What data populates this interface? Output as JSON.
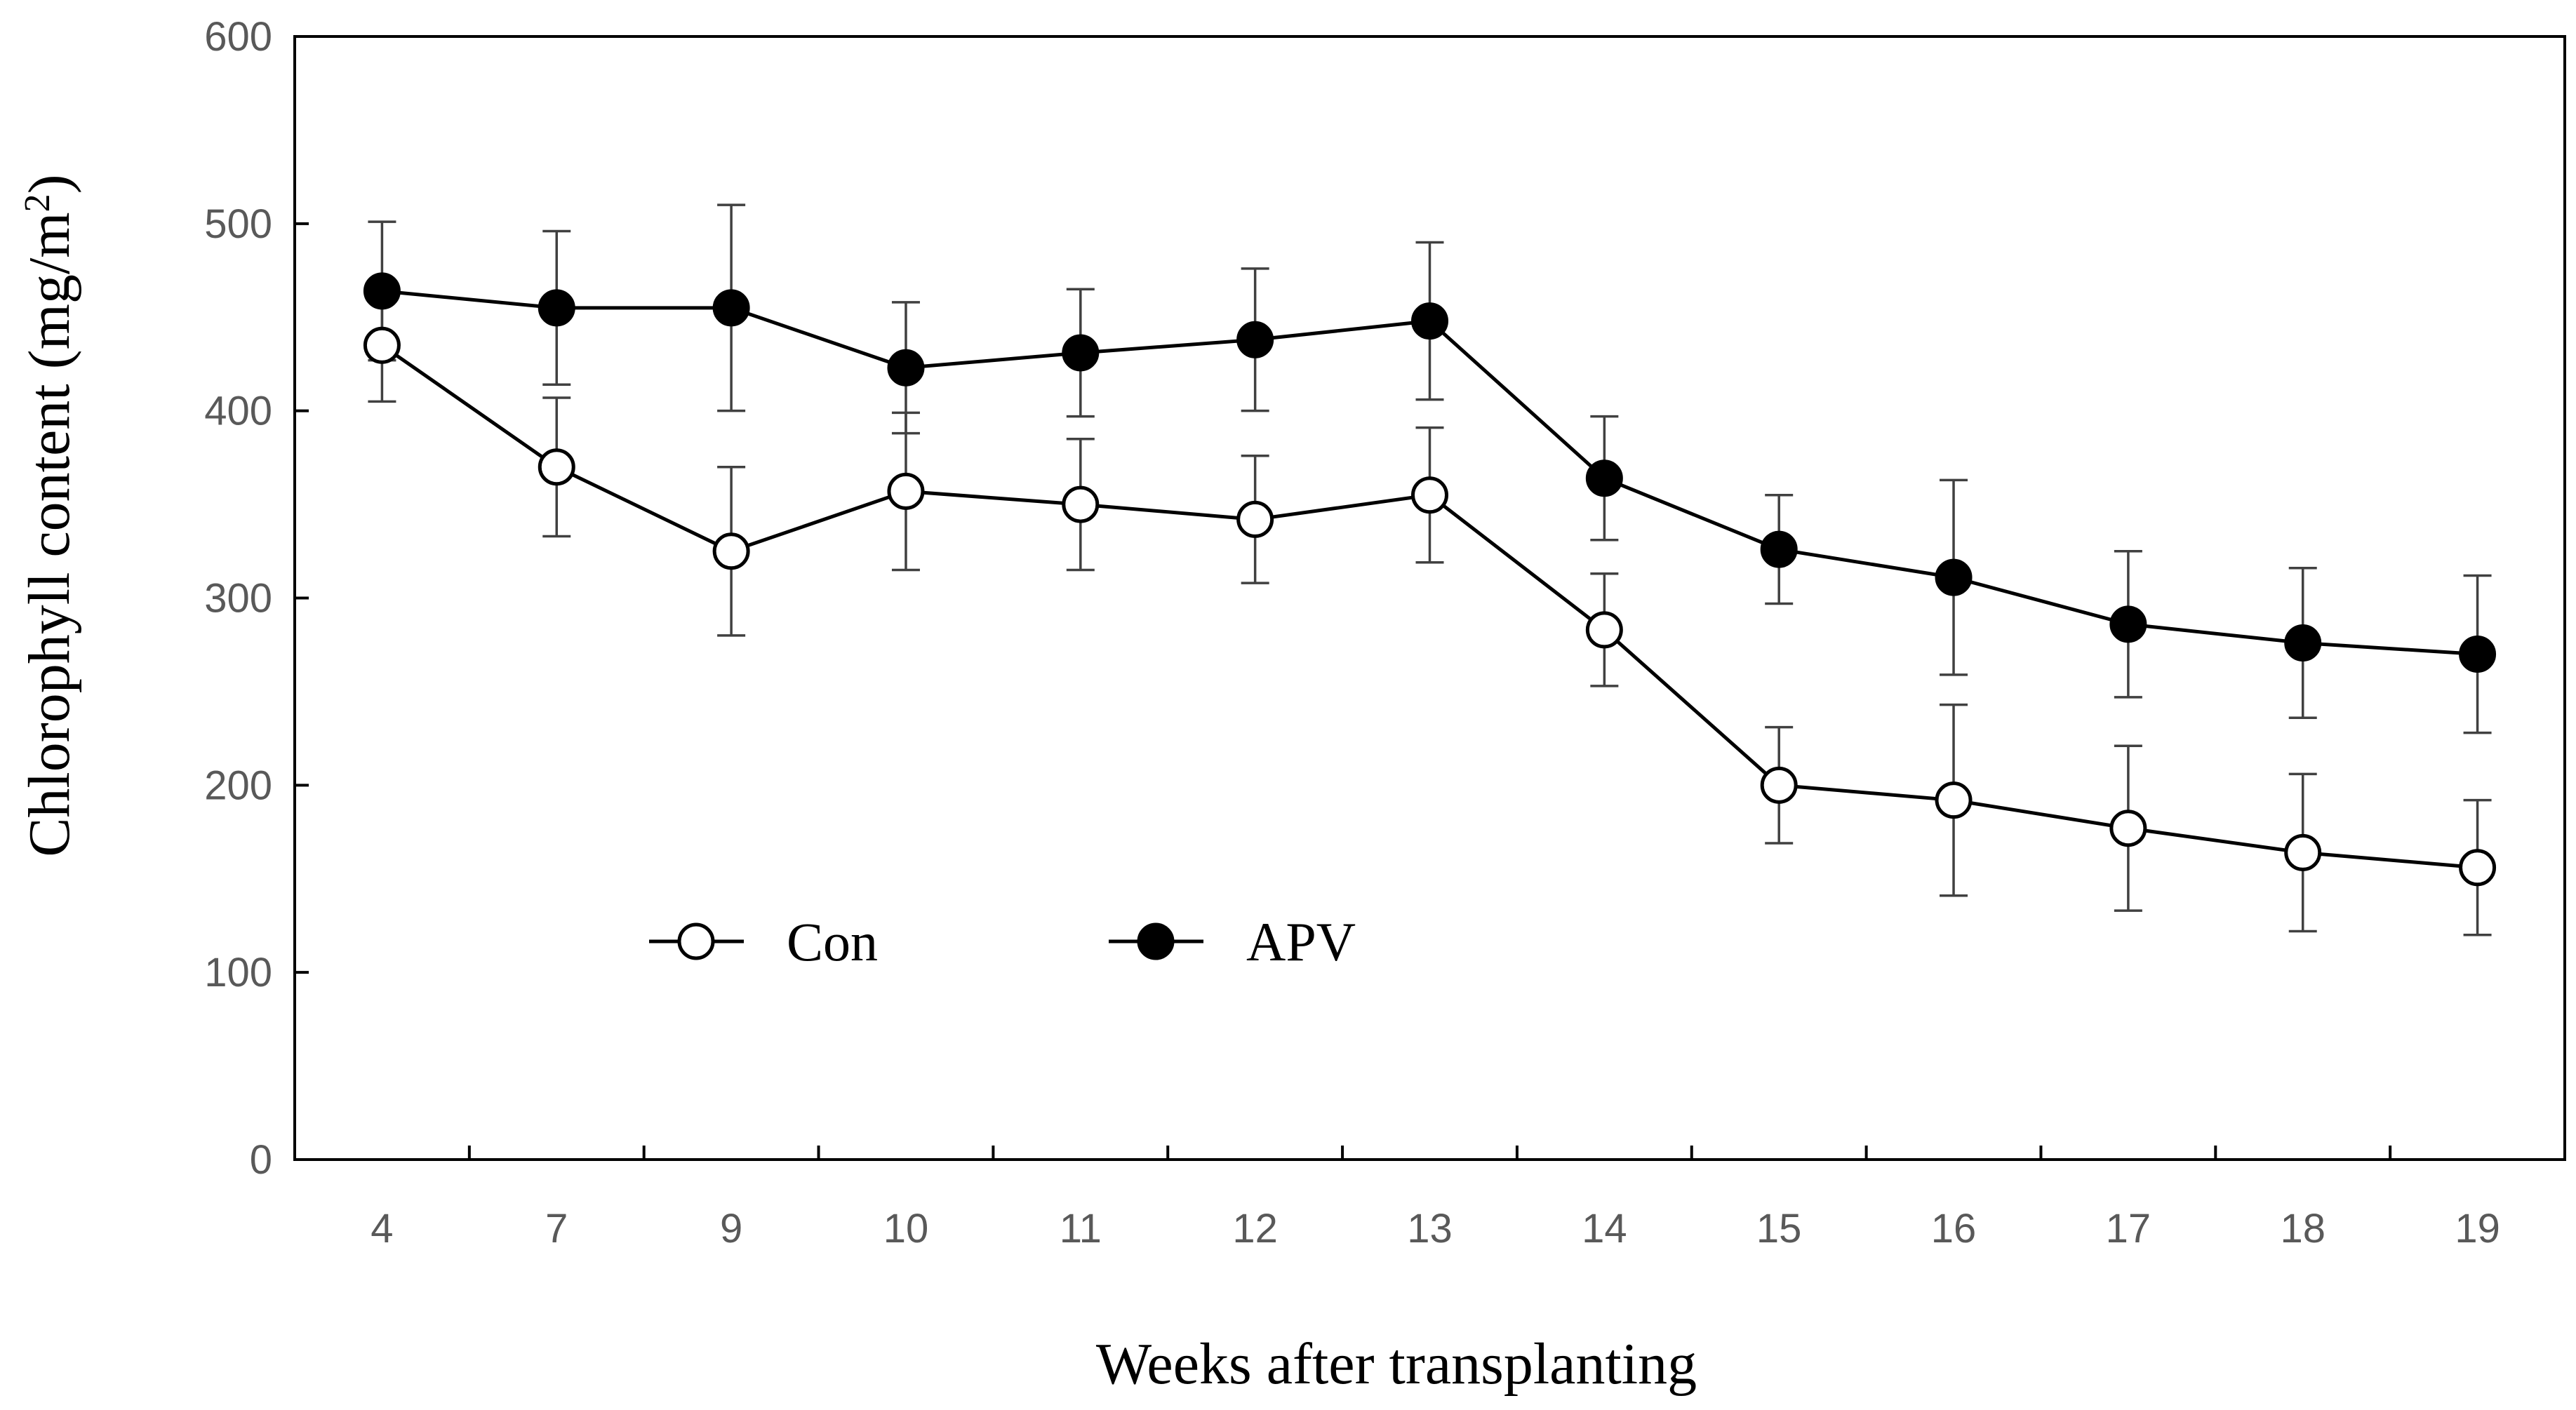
{
  "chart_data": {
    "type": "line",
    "title": "",
    "xlabel": "Weeks after transplanting",
    "ylabel_main": "Chlorophyll content (mg/m",
    "ylabel_sup": "2",
    "ylabel_close": ")",
    "ylim": [
      0,
      600
    ],
    "yticks": [
      "0",
      "100",
      "200",
      "300",
      "400",
      "500",
      "600"
    ],
    "categories": [
      "4",
      "7",
      "9",
      "10",
      "11",
      "12",
      "13",
      "14",
      "15",
      "16",
      "17",
      "18",
      "19"
    ],
    "grid": false,
    "legend_position": "bottom-left",
    "series": [
      {
        "name": "Con",
        "marker": "open-circle",
        "values": [
          435,
          370,
          325,
          357,
          350,
          342,
          355,
          283,
          200,
          192,
          177,
          164,
          156
        ],
        "errors": [
          30,
          37,
          45,
          42,
          35,
          34,
          36,
          30,
          31,
          51,
          44,
          42,
          36
        ]
      },
      {
        "name": "APV",
        "marker": "filled-circle",
        "values": [
          464,
          455,
          455,
          423,
          431,
          438,
          448,
          364,
          326,
          311,
          286,
          276,
          270
        ],
        "errors": [
          37,
          41,
          55,
          35,
          34,
          38,
          42,
          33,
          29,
          52,
          39,
          40,
          42
        ]
      }
    ],
    "colors": {
      "line": "#000000",
      "axis": "#000000",
      "tick_text": "#595959",
      "open_fill": "#ffffff",
      "error_bar": "#404040"
    }
  }
}
